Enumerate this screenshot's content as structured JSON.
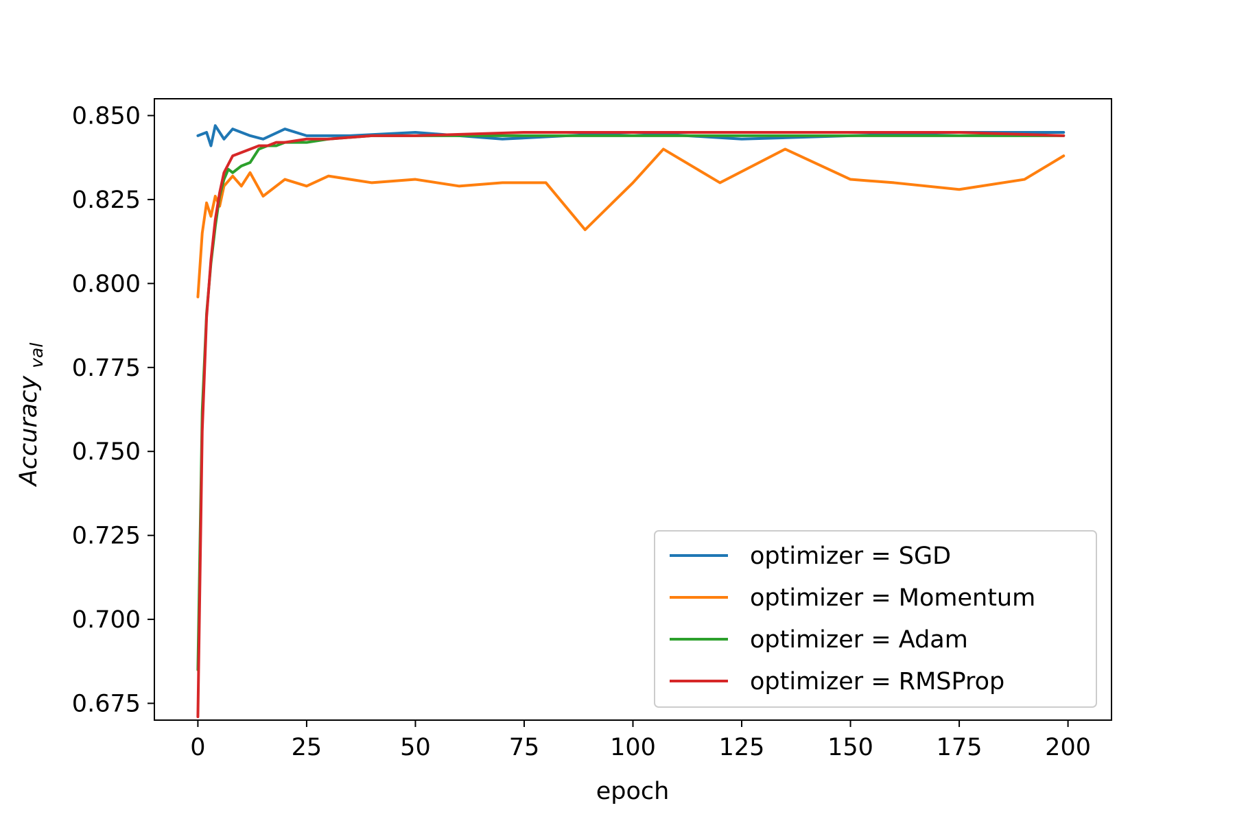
{
  "chart_data": {
    "type": "line",
    "title": "",
    "xlabel": "epoch",
    "ylabel": "Accuracy",
    "ylabel_subscript": "val",
    "xlim": [
      -10,
      210
    ],
    "ylim": [
      0.67,
      0.855
    ],
    "x_ticks": [
      0,
      25,
      50,
      75,
      100,
      125,
      150,
      175,
      200
    ],
    "x_tick_labels": [
      "0",
      "25",
      "50",
      "75",
      "100",
      "125",
      "150",
      "175",
      "200"
    ],
    "y_ticks": [
      0.675,
      0.7,
      0.725,
      0.75,
      0.775,
      0.8,
      0.825,
      0.85
    ],
    "y_tick_labels": [
      "0.675",
      "0.700",
      "0.725",
      "0.750",
      "0.775",
      "0.800",
      "0.825",
      "0.850"
    ],
    "grid": false,
    "legend_position": "bottom-right",
    "series": [
      {
        "name": "optimizer = SGD",
        "color": "#1f77b4",
        "x": [
          0,
          2,
          3,
          4,
          6,
          8,
          12,
          15,
          20,
          25,
          35,
          50,
          70,
          100,
          125,
          150,
          175,
          199
        ],
        "values": [
          0.844,
          0.845,
          0.841,
          0.847,
          0.843,
          0.846,
          0.844,
          0.843,
          0.846,
          0.844,
          0.844,
          0.845,
          0.843,
          0.845,
          0.843,
          0.844,
          0.845,
          0.845
        ]
      },
      {
        "name": "optimizer = Momentum",
        "color": "#ff7f0e",
        "x": [
          0,
          1,
          2,
          3,
          4,
          5,
          6,
          8,
          10,
          12,
          15,
          20,
          25,
          30,
          40,
          50,
          60,
          70,
          80,
          89,
          100,
          107,
          120,
          135,
          150,
          160,
          175,
          190,
          199
        ],
        "values": [
          0.796,
          0.815,
          0.824,
          0.82,
          0.826,
          0.823,
          0.829,
          0.832,
          0.829,
          0.833,
          0.826,
          0.831,
          0.829,
          0.832,
          0.83,
          0.831,
          0.829,
          0.83,
          0.83,
          0.816,
          0.83,
          0.84,
          0.83,
          0.84,
          0.831,
          0.83,
          0.828,
          0.831,
          0.838
        ]
      },
      {
        "name": "optimizer = Adam",
        "color": "#2ca02c",
        "x": [
          0,
          1,
          2,
          3,
          4,
          5,
          6,
          7,
          8,
          10,
          12,
          14,
          16,
          18,
          20,
          25,
          30,
          40,
          50,
          75,
          100,
          125,
          150,
          175,
          199
        ],
        "values": [
          0.685,
          0.762,
          0.791,
          0.806,
          0.817,
          0.826,
          0.831,
          0.834,
          0.833,
          0.835,
          0.836,
          0.84,
          0.841,
          0.841,
          0.842,
          0.842,
          0.843,
          0.844,
          0.844,
          0.844,
          0.844,
          0.844,
          0.844,
          0.844,
          0.844
        ]
      },
      {
        "name": "optimizer = RMSProp",
        "color": "#d62728",
        "x": [
          0,
          1,
          2,
          3,
          4,
          5,
          6,
          8,
          10,
          12,
          14,
          16,
          18,
          20,
          25,
          30,
          40,
          50,
          75,
          100,
          125,
          150,
          175,
          199
        ],
        "values": [
          0.671,
          0.756,
          0.79,
          0.807,
          0.819,
          0.827,
          0.833,
          0.838,
          0.839,
          0.84,
          0.841,
          0.841,
          0.842,
          0.842,
          0.843,
          0.843,
          0.844,
          0.844,
          0.845,
          0.845,
          0.845,
          0.845,
          0.845,
          0.844
        ]
      }
    ]
  }
}
